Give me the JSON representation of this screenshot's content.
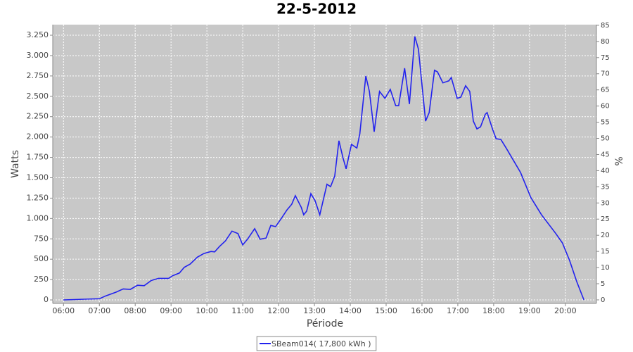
{
  "chart_data": {
    "type": "line",
    "title": "22-5-2012",
    "x_label": "Période",
    "y_label": "Watts",
    "y2_label": "%",
    "x": [
      "06:00",
      "07:00",
      "07:11",
      "07:28",
      "07:40",
      "07:52",
      "08:04",
      "08:15",
      "08:27",
      "08:39",
      "08:56",
      "09:02",
      "09:14",
      "09:22",
      "09:32",
      "09:44",
      "09:55",
      "10:07",
      "10:13",
      "10:21",
      "10:31",
      "10:42",
      "10:52",
      "11:00",
      "11:08",
      "11:20",
      "11:29",
      "11:39",
      "11:47",
      "11:55",
      "12:05",
      "12:14",
      "12:22",
      "12:28",
      "12:38",
      "12:42",
      "12:47",
      "12:54",
      "13:01",
      "13:09",
      "13:21",
      "13:27",
      "13:34",
      "13:41",
      "13:48",
      "13:53",
      "14:02",
      "14:11",
      "14:16",
      "14:26",
      "14:32",
      "14:40",
      "14:49",
      "14:58",
      "15:07",
      "15:16",
      "15:21",
      "15:31",
      "15:39",
      "15:48",
      "15:54",
      "16:06",
      "16:12",
      "16:21",
      "16:26",
      "16:35",
      "16:45",
      "16:49",
      "16:59",
      "17:05",
      "17:13",
      "17:20",
      "17:26",
      "17:32",
      "17:38",
      "17:46",
      "17:49",
      "17:58",
      "18:04",
      "18:12",
      "18:21",
      "18:45",
      "19:02",
      "19:20",
      "19:44",
      "19:55",
      "20:07",
      "20:19",
      "20:31"
    ],
    "series": [
      {
        "name": "SBeam014( 17,800 kWh )",
        "color": "#2222ee",
        "values": [
          0,
          15,
          50,
          95,
          135,
          130,
          180,
          175,
          240,
          265,
          265,
          295,
          330,
          400,
          440,
          525,
          570,
          595,
          590,
          655,
          725,
          845,
          815,
          675,
          745,
          875,
          745,
          760,
          915,
          900,
          1005,
          1105,
          1175,
          1280,
          1135,
          1045,
          1090,
          1305,
          1220,
          1045,
          1420,
          1390,
          1520,
          1955,
          1740,
          1610,
          1910,
          1865,
          2040,
          2750,
          2560,
          2065,
          2560,
          2475,
          2585,
          2385,
          2385,
          2845,
          2405,
          3235,
          3080,
          2195,
          2300,
          2820,
          2800,
          2665,
          2690,
          2730,
          2475,
          2490,
          2630,
          2560,
          2195,
          2100,
          2125,
          2280,
          2300,
          2100,
          1980,
          1970,
          1865,
          1565,
          1260,
          1045,
          815,
          700,
          485,
          225,
          0
        ]
      }
    ],
    "xlim": [
      "05:42",
      "20:52"
    ],
    "xticks": [
      "06:00",
      "07:00",
      "08:00",
      "09:00",
      "10:00",
      "11:00",
      "12:00",
      "13:00",
      "14:00",
      "15:00",
      "16:00",
      "17:00",
      "18:00",
      "19:00",
      "20:00"
    ],
    "ylim": [
      -43,
      3380
    ],
    "yticks": [
      0,
      250,
      500,
      750,
      {
        "value": 1000,
        "label": "1.000"
      },
      {
        "value": 1250,
        "label": "1.250"
      },
      {
        "value": 1500,
        "label": "1.500"
      },
      {
        "value": 1750,
        "label": "1.750"
      },
      {
        "value": 2000,
        "label": "2.000"
      },
      {
        "value": 2250,
        "label": "2.250"
      },
      {
        "value": 2500,
        "label": "2.500"
      },
      {
        "value": 2750,
        "label": "2.750"
      },
      {
        "value": 3000,
        "label": "3.000"
      },
      {
        "value": 3250,
        "label": "3.250"
      }
    ],
    "y2lim": [
      -1.1,
      85.2
    ],
    "y2ticks": [
      0,
      5,
      10,
      15,
      20,
      25,
      30,
      35,
      40,
      45,
      50,
      55,
      60,
      65,
      70,
      75,
      80,
      85
    ],
    "grid": true,
    "legend": "bottom",
    "plot_background": "#c8c8c8"
  }
}
